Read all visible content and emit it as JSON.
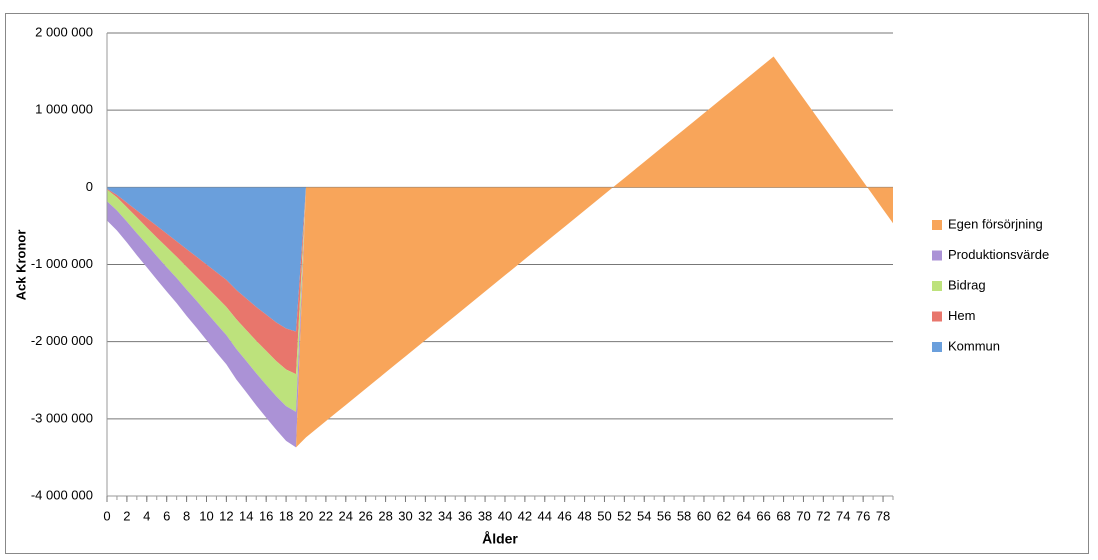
{
  "chart_data": {
    "type": "stacked-area",
    "x_label": "Ålder",
    "y_label": "Ack Kronor",
    "x": [
      0,
      1,
      2,
      3,
      4,
      5,
      6,
      7,
      8,
      9,
      10,
      11,
      12,
      13,
      14,
      15,
      16,
      17,
      18,
      19,
      20,
      21,
      22,
      23,
      24,
      25,
      26,
      27,
      28,
      29,
      30,
      31,
      32,
      33,
      34,
      35,
      36,
      37,
      38,
      39,
      40,
      41,
      42,
      43,
      44,
      45,
      46,
      47,
      48,
      49,
      50,
      51,
      52,
      53,
      54,
      55,
      56,
      57,
      58,
      59,
      60,
      61,
      62,
      63,
      64,
      65,
      66,
      67,
      68,
      69,
      70,
      71,
      72,
      73,
      74,
      75,
      76,
      77,
      78,
      79
    ],
    "xlim": [
      0,
      79
    ],
    "xticks": [
      0,
      2,
      4,
      6,
      8,
      10,
      12,
      14,
      16,
      18,
      20,
      22,
      24,
      26,
      28,
      30,
      32,
      34,
      36,
      38,
      40,
      42,
      44,
      46,
      48,
      50,
      52,
      54,
      56,
      58,
      60,
      62,
      64,
      66,
      68,
      70,
      72,
      74,
      76,
      78
    ],
    "ylim": [
      -4000000,
      2000000
    ],
    "yticks": [
      {
        "value": -4000000,
        "label": "-4 000 000"
      },
      {
        "value": -3000000,
        "label": "-3 000 000"
      },
      {
        "value": -2000000,
        "label": "-2 000 000"
      },
      {
        "value": -1000000,
        "label": "-1 000 000"
      },
      0,
      {
        "value": 1000000,
        "label": "1 000 000"
      },
      {
        "value": 2000000,
        "label": "2 000 000"
      }
    ],
    "grid": true,
    "legend": "right",
    "series": [
      {
        "name": "Kommun",
        "color": "#6a9fdc",
        "values": [
          -20000,
          -100000,
          -200000,
          -300000,
          -400000,
          -500000,
          -600000,
          -700000,
          -800000,
          -900000,
          -1000000,
          -1100000,
          -1200000,
          -1330000,
          -1440000,
          -1550000,
          -1650000,
          -1750000,
          -1830000,
          -1870000,
          0,
          0,
          0,
          0,
          0,
          0,
          0,
          0,
          0,
          0,
          0,
          0,
          0,
          0,
          0,
          0,
          0,
          0,
          0,
          0,
          0,
          0,
          0,
          0,
          0,
          0,
          0,
          0,
          0,
          0,
          0,
          0,
          0,
          0,
          0,
          0,
          0,
          0,
          0,
          0,
          0,
          0,
          0,
          0,
          0,
          0,
          0,
          0,
          0,
          0,
          0,
          0,
          0,
          0,
          0,
          0,
          0,
          0,
          0,
          0
        ]
      },
      {
        "name": "Hem",
        "color": "#e8766c",
        "values": [
          -10000,
          -30000,
          -60000,
          -90000,
          -120000,
          -150000,
          -175000,
          -200000,
          -230000,
          -260000,
          -290000,
          -320000,
          -350000,
          -380000,
          -410000,
          -440000,
          -470000,
          -500000,
          -530000,
          -550000,
          0,
          0,
          0,
          0,
          0,
          0,
          0,
          0,
          0,
          0,
          0,
          0,
          0,
          0,
          0,
          0,
          0,
          0,
          0,
          0,
          0,
          0,
          0,
          0,
          0,
          0,
          0,
          0,
          0,
          0,
          0,
          0,
          0,
          0,
          0,
          0,
          0,
          0,
          0,
          0,
          0,
          0,
          0,
          0,
          0,
          0,
          0,
          0,
          0,
          0,
          0,
          0,
          0,
          0,
          0,
          0,
          0,
          0,
          0,
          0
        ]
      },
      {
        "name": "Bidrag",
        "color": "#bde27c",
        "values": [
          -150000,
          -170000,
          -185000,
          -205000,
          -220000,
          -240000,
          -260000,
          -275000,
          -295000,
          -310000,
          -330000,
          -350000,
          -365000,
          -385000,
          -400000,
          -420000,
          -440000,
          -455000,
          -475000,
          -490000,
          0,
          0,
          0,
          0,
          0,
          0,
          0,
          0,
          0,
          0,
          0,
          0,
          0,
          0,
          0,
          0,
          0,
          0,
          0,
          0,
          0,
          0,
          0,
          0,
          0,
          0,
          0,
          0,
          0,
          0,
          0,
          0,
          0,
          0,
          0,
          0,
          0,
          0,
          0,
          0,
          0,
          0,
          0,
          0,
          0,
          0,
          0,
          0,
          0,
          0,
          0,
          0,
          0,
          0,
          0,
          0,
          0,
          0,
          0,
          0
        ]
      },
      {
        "name": "Produktionsvärde",
        "color": "#ab92d6",
        "values": [
          -250000,
          -260000,
          -270000,
          -285000,
          -295000,
          -305000,
          -315000,
          -325000,
          -340000,
          -350000,
          -360000,
          -370000,
          -380000,
          -395000,
          -405000,
          -415000,
          -425000,
          -435000,
          -450000,
          -460000,
          0,
          0,
          0,
          0,
          0,
          0,
          0,
          0,
          0,
          0,
          0,
          0,
          0,
          0,
          0,
          0,
          0,
          0,
          0,
          0,
          0,
          0,
          0,
          0,
          0,
          0,
          0,
          0,
          0,
          0,
          0,
          0,
          0,
          0,
          0,
          0,
          0,
          0,
          0,
          0,
          0,
          0,
          0,
          0,
          0,
          0,
          0,
          0,
          0,
          0,
          0,
          0,
          0,
          0,
          0,
          0,
          0,
          0,
          0,
          0
        ]
      },
      {
        "name": "Egen försörjning",
        "color": "#f8a55a",
        "values": [
          0,
          0,
          0,
          0,
          0,
          0,
          0,
          0,
          0,
          0,
          0,
          0,
          0,
          0,
          0,
          0,
          0,
          0,
          0,
          0,
          -3240000,
          -3135000,
          -3030000,
          -2925000,
          -2820000,
          -2715000,
          -2610000,
          -2505000,
          -2400000,
          -2295000,
          -2190000,
          -2085000,
          -1980000,
          -1875000,
          -1770000,
          -1665000,
          -1560000,
          -1455000,
          -1350000,
          -1245000,
          -1140000,
          -1035000,
          -930000,
          -825000,
          -720000,
          -615000,
          -510000,
          -405000,
          -300000,
          -195000,
          -90000,
          15000,
          120000,
          225000,
          330000,
          435000,
          540000,
          645000,
          750000,
          855000,
          960000,
          1065000,
          1170000,
          1275000,
          1380000,
          1485000,
          1590000,
          1695000,
          1515000,
          1335000,
          1155000,
          975000,
          795000,
          615000,
          435000,
          255000,
          75000,
          -105000,
          -285000,
          -465000
        ]
      }
    ]
  }
}
